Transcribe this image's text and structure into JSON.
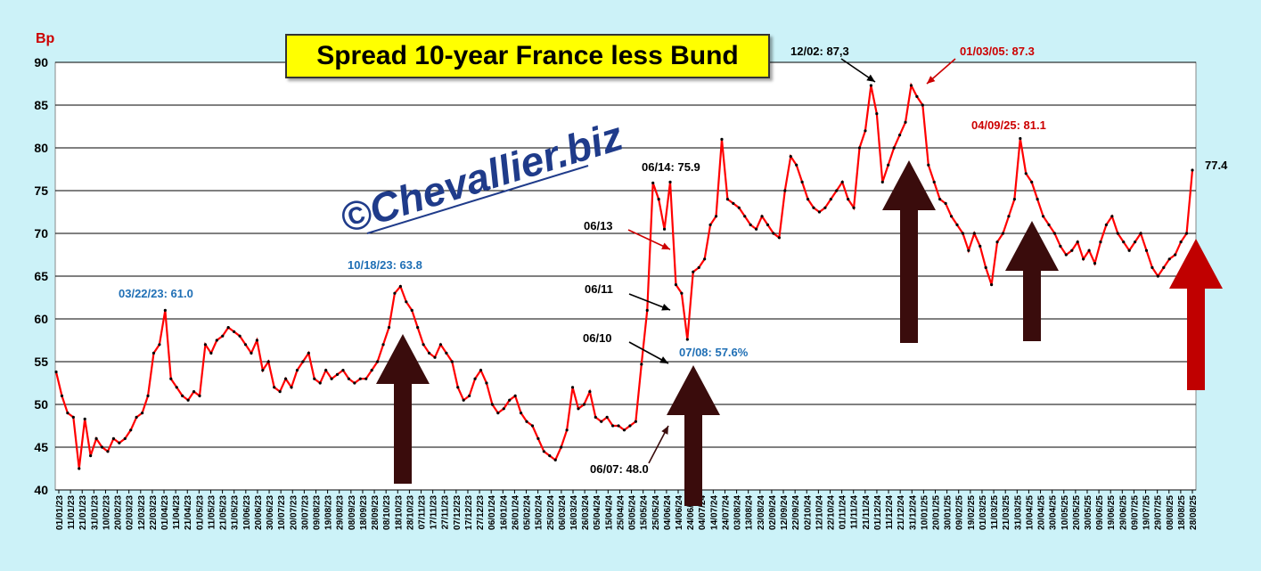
{
  "chart_data": {
    "type": "line",
    "title": "Spread 10-year France less Bund",
    "ylabel": "Bp",
    "ylim": [
      40,
      90
    ],
    "yticks": [
      40,
      45,
      50,
      55,
      60,
      65,
      70,
      75,
      80,
      85,
      90
    ],
    "grid": true,
    "series_color": "#ff0000",
    "marker_color": "#000000",
    "watermark": "©Chevallier.biz",
    "x_tick_labels": [
      "01/01/23",
      "11/01/23",
      "21/01/23",
      "31/01/23",
      "10/02/23",
      "20/02/23",
      "02/03/23",
      "12/03/23",
      "22/03/23",
      "01/04/23",
      "11/04/23",
      "21/04/23",
      "01/05/23",
      "11/05/23",
      "21/05/23",
      "31/05/23",
      "10/06/23",
      "20/06/23",
      "30/06/23",
      "10/07/23",
      "20/07/23",
      "30/07/23",
      "09/08/23",
      "19/08/23",
      "29/08/23",
      "08/09/23",
      "18/09/23",
      "28/09/23",
      "08/10/23",
      "18/10/23",
      "28/10/23",
      "07/11/23",
      "17/11/23",
      "27/11/23",
      "07/12/23",
      "17/12/23",
      "27/12/23",
      "06/01/24",
      "16/01/24",
      "26/01/24",
      "05/02/24",
      "15/02/24",
      "25/02/24",
      "06/03/24",
      "16/03/24",
      "26/03/24",
      "05/04/24",
      "15/04/24",
      "25/04/24",
      "05/05/24",
      "15/05/24",
      "25/05/24",
      "04/06/24",
      "14/06/24",
      "24/06/24",
      "04/07/24",
      "14/07/24",
      "24/07/24",
      "03/08/24",
      "13/08/24",
      "23/08/24",
      "02/09/24",
      "12/09/24",
      "22/09/24",
      "02/10/24",
      "12/10/24",
      "22/10/24",
      "01/11/24",
      "11/11/24",
      "21/11/24",
      "01/12/24",
      "11/12/24",
      "21/12/24",
      "31/12/24",
      "10/01/25",
      "20/01/25",
      "30/01/25",
      "09/02/25",
      "19/02/25",
      "01/03/25",
      "11/03/25",
      "21/03/25",
      "31/03/25",
      "10/04/25",
      "20/04/25",
      "30/04/25",
      "10/05/25",
      "20/05/25",
      "30/05/25",
      "09/06/25",
      "19/06/25",
      "29/06/25",
      "09/07/25",
      "19/07/25",
      "29/07/25",
      "08/08/25",
      "18/08/25",
      "28/08/25"
    ],
    "points": [
      [
        0,
        53.8
      ],
      [
        1,
        51
      ],
      [
        2,
        49
      ],
      [
        3,
        48.5
      ],
      [
        4,
        42.5
      ],
      [
        5,
        48.3
      ],
      [
        6,
        44
      ],
      [
        7,
        46
      ],
      [
        8,
        45
      ],
      [
        9,
        44.5
      ],
      [
        10,
        46
      ],
      [
        11,
        45.5
      ],
      [
        12,
        46
      ],
      [
        13,
        47
      ],
      [
        14,
        48.5
      ],
      [
        15,
        49
      ],
      [
        16,
        51
      ],
      [
        17,
        56
      ],
      [
        18,
        57
      ],
      [
        19,
        61
      ],
      [
        20,
        53
      ],
      [
        21,
        52
      ],
      [
        22,
        51
      ],
      [
        23,
        50.5
      ],
      [
        24,
        51.5
      ],
      [
        25,
        51
      ],
      [
        26,
        57
      ],
      [
        27,
        56
      ],
      [
        28,
        57.5
      ],
      [
        29,
        58
      ],
      [
        30,
        59
      ],
      [
        31,
        58.5
      ],
      [
        32,
        58
      ],
      [
        33,
        57
      ],
      [
        34,
        56
      ],
      [
        35,
        57.5
      ],
      [
        36,
        54
      ],
      [
        37,
        55
      ],
      [
        38,
        52
      ],
      [
        39,
        51.5
      ],
      [
        40,
        53
      ],
      [
        41,
        52
      ],
      [
        42,
        54
      ],
      [
        43,
        55
      ],
      [
        44,
        56
      ],
      [
        45,
        53
      ],
      [
        46,
        52.5
      ],
      [
        47,
        54
      ],
      [
        48,
        53
      ],
      [
        49,
        53.5
      ],
      [
        50,
        54
      ],
      [
        51,
        53
      ],
      [
        52,
        52.5
      ],
      [
        53,
        53
      ],
      [
        54,
        53
      ],
      [
        55,
        54
      ],
      [
        56,
        55
      ],
      [
        57,
        57
      ],
      [
        58,
        59
      ],
      [
        59,
        63
      ],
      [
        60,
        63.8
      ],
      [
        61,
        62
      ],
      [
        62,
        61
      ],
      [
        63,
        59
      ],
      [
        64,
        57
      ],
      [
        65,
        56
      ],
      [
        66,
        55.5
      ],
      [
        67,
        57
      ],
      [
        68,
        56
      ],
      [
        69,
        55
      ],
      [
        70,
        52
      ],
      [
        71,
        50.5
      ],
      [
        72,
        51
      ],
      [
        73,
        53
      ],
      [
        74,
        54
      ],
      [
        75,
        52.5
      ],
      [
        76,
        50
      ],
      [
        77,
        49
      ],
      [
        78,
        49.5
      ],
      [
        79,
        50.5
      ],
      [
        80,
        51
      ],
      [
        81,
        49
      ],
      [
        82,
        48
      ],
      [
        83,
        47.5
      ],
      [
        84,
        46
      ],
      [
        85,
        44.5
      ],
      [
        86,
        44
      ],
      [
        87,
        43.5
      ],
      [
        88,
        45
      ],
      [
        89,
        47
      ],
      [
        90,
        52
      ],
      [
        91,
        49.5
      ],
      [
        92,
        50
      ],
      [
        93,
        51.5
      ],
      [
        94,
        48.5
      ],
      [
        95,
        48
      ],
      [
        96,
        48.5
      ],
      [
        97,
        47.5
      ],
      [
        98,
        47.5
      ],
      [
        99,
        47
      ],
      [
        100,
        47.5
      ],
      [
        101,
        48
      ],
      [
        102,
        54.7
      ],
      [
        103,
        61
      ],
      [
        104,
        75.9
      ],
      [
        105,
        74
      ],
      [
        106,
        70.5
      ],
      [
        107,
        76
      ],
      [
        108,
        64
      ],
      [
        109,
        63
      ],
      [
        110,
        57.6
      ],
      [
        111,
        65.5
      ],
      [
        112,
        66
      ],
      [
        113,
        67
      ],
      [
        114,
        71
      ],
      [
        115,
        72
      ],
      [
        116,
        81
      ],
      [
        117,
        74
      ],
      [
        118,
        73.5
      ],
      [
        119,
        73
      ],
      [
        120,
        72
      ],
      [
        121,
        71
      ],
      [
        122,
        70.5
      ],
      [
        123,
        72
      ],
      [
        124,
        71
      ],
      [
        125,
        70
      ],
      [
        126,
        69.5
      ],
      [
        127,
        75
      ],
      [
        128,
        79
      ],
      [
        129,
        78
      ],
      [
        130,
        76
      ],
      [
        131,
        74
      ],
      [
        132,
        73
      ],
      [
        133,
        72.5
      ],
      [
        134,
        73
      ],
      [
        135,
        74
      ],
      [
        136,
        75
      ],
      [
        137,
        76
      ],
      [
        138,
        74
      ],
      [
        139,
        73
      ],
      [
        140,
        80
      ],
      [
        141,
        82
      ],
      [
        142,
        87.3
      ],
      [
        143,
        84
      ],
      [
        144,
        76
      ],
      [
        145,
        78
      ],
      [
        146,
        80
      ],
      [
        147,
        81.5
      ],
      [
        148,
        83
      ],
      [
        149,
        87.3
      ],
      [
        150,
        86
      ],
      [
        151,
        85
      ],
      [
        152,
        78
      ],
      [
        153,
        76
      ],
      [
        154,
        74
      ],
      [
        155,
        73.5
      ],
      [
        156,
        72
      ],
      [
        157,
        71
      ],
      [
        158,
        70
      ],
      [
        159,
        68
      ],
      [
        160,
        70
      ],
      [
        161,
        68.5
      ],
      [
        162,
        66
      ],
      [
        163,
        64
      ],
      [
        164,
        69
      ],
      [
        165,
        70
      ],
      [
        166,
        72
      ],
      [
        167,
        74
      ],
      [
        168,
        81.1
      ],
      [
        169,
        77
      ],
      [
        170,
        76
      ],
      [
        171,
        74
      ],
      [
        172,
        72
      ],
      [
        173,
        71
      ],
      [
        174,
        70
      ],
      [
        175,
        68.5
      ],
      [
        176,
        67.5
      ],
      [
        177,
        68
      ],
      [
        178,
        69
      ],
      [
        179,
        67
      ],
      [
        180,
        68
      ],
      [
        181,
        66.5
      ],
      [
        182,
        69
      ],
      [
        183,
        71
      ],
      [
        184,
        72
      ],
      [
        185,
        70
      ],
      [
        186,
        69
      ],
      [
        187,
        68
      ],
      [
        188,
        69
      ],
      [
        189,
        70
      ],
      [
        190,
        68
      ],
      [
        191,
        66
      ],
      [
        192,
        65
      ],
      [
        193,
        66
      ],
      [
        194,
        67
      ],
      [
        195,
        67.5
      ],
      [
        196,
        69
      ],
      [
        197,
        70
      ],
      [
        198,
        77.4
      ]
    ],
    "annotations": [
      {
        "text": "03/22/23: 61.0",
        "color": "#1f6fb5"
      },
      {
        "text": "10/18/23: 63.8",
        "color": "#1f6fb5"
      },
      {
        "text": "06/14: 75.9",
        "color": "#000000"
      },
      {
        "text": "06/13",
        "color": "#000000"
      },
      {
        "text": "06/11",
        "color": "#000000"
      },
      {
        "text": "06/10",
        "color": "#000000"
      },
      {
        "text": "07/08: 57.6%",
        "color": "#1f6fb5"
      },
      {
        "text": "06/07: 48.0",
        "color": "#000000"
      },
      {
        "text": "12/02: 87,3",
        "color": "#000000"
      },
      {
        "text": "01/03/05: 87.3",
        "color": "#cc0000"
      },
      {
        "text": "04/09/25: 81.1",
        "color": "#cc0000"
      },
      {
        "text": "77.4",
        "color": "#000000"
      }
    ]
  }
}
